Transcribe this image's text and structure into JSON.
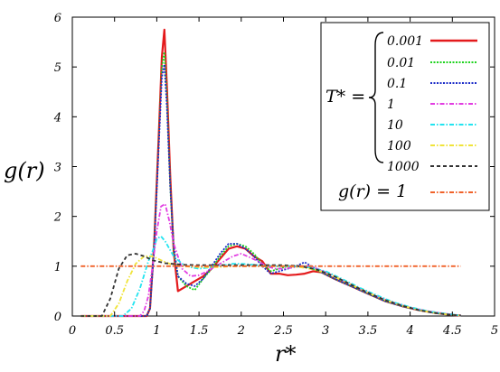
{
  "chart_data": {
    "type": "line",
    "xlabel": "r*",
    "ylabel": "g(r)",
    "xlim": [
      0,
      5
    ],
    "ylim": [
      0,
      6
    ],
    "x_ticks": [
      "0",
      "0.5",
      "1",
      "1.5",
      "2",
      "2.5",
      "3",
      "3.5",
      "4",
      "4.5",
      "5"
    ],
    "y_ticks": [
      "0",
      "1",
      "2",
      "3",
      "4",
      "5",
      "6"
    ],
    "grid": false,
    "legend_position": "top-right",
    "legend_group_label": "T* =",
    "series": [
      {
        "name": "0.001",
        "color": "#e41a1c",
        "dash": "solid",
        "x": [
          0.1,
          0.88,
          0.92,
          0.97,
          1.02,
          1.06,
          1.09,
          1.12,
          1.16,
          1.2,
          1.25,
          1.35,
          1.45,
          1.55,
          1.65,
          1.75,
          1.85,
          1.95,
          2.05,
          2.15,
          2.25,
          2.35,
          2.45,
          2.55,
          2.65,
          2.75,
          2.85,
          2.95,
          3.1,
          3.3,
          3.5,
          3.7,
          3.9,
          4.1,
          4.3,
          4.5,
          4.6
        ],
        "y": [
          0,
          0,
          0.15,
          1.5,
          3.5,
          5.2,
          5.75,
          4.6,
          2.8,
          1.3,
          0.5,
          0.6,
          0.7,
          0.8,
          0.95,
          1.15,
          1.35,
          1.4,
          1.35,
          1.2,
          1.1,
          0.85,
          0.85,
          0.82,
          0.83,
          0.85,
          0.9,
          0.88,
          0.75,
          0.6,
          0.45,
          0.3,
          0.2,
          0.12,
          0.06,
          0.02,
          0.01
        ]
      },
      {
        "name": "0.01",
        "color": "#1fd31f",
        "dash": "dots",
        "x": [
          0.1,
          0.88,
          0.92,
          0.97,
          1.02,
          1.06,
          1.09,
          1.12,
          1.16,
          1.2,
          1.25,
          1.35,
          1.45,
          1.55,
          1.65,
          1.75,
          1.85,
          1.95,
          2.05,
          2.15,
          2.25,
          2.35,
          2.45,
          2.55,
          2.65,
          2.75,
          2.85,
          2.95,
          3.1,
          3.3,
          3.5,
          3.7,
          3.9,
          4.1,
          4.3,
          4.5,
          4.6
        ],
        "y": [
          0,
          0,
          0.15,
          1.5,
          3.4,
          5.0,
          5.3,
          4.4,
          2.6,
          1.3,
          0.8,
          0.6,
          0.52,
          0.75,
          0.95,
          1.2,
          1.4,
          1.45,
          1.4,
          1.25,
          1.05,
          0.9,
          0.95,
          1.0,
          1.0,
          1.0,
          0.95,
          0.88,
          0.75,
          0.6,
          0.45,
          0.3,
          0.2,
          0.12,
          0.06,
          0.02,
          0.01
        ]
      },
      {
        "name": "0.1",
        "color": "#1c2cc8",
        "dash": "dots",
        "x": [
          0.1,
          0.88,
          0.92,
          0.97,
          1.02,
          1.06,
          1.09,
          1.12,
          1.16,
          1.2,
          1.25,
          1.35,
          1.45,
          1.55,
          1.65,
          1.75,
          1.85,
          1.95,
          2.05,
          2.15,
          2.25,
          2.35,
          2.45,
          2.55,
          2.65,
          2.75,
          2.85,
          2.95,
          3.1,
          3.3,
          3.5,
          3.7,
          3.9,
          4.1,
          4.3,
          4.5,
          4.6
        ],
        "y": [
          0,
          0,
          0.15,
          1.4,
          3.3,
          4.8,
          5.05,
          4.2,
          2.6,
          1.4,
          0.8,
          0.65,
          0.6,
          0.75,
          1.0,
          1.25,
          1.45,
          1.45,
          1.35,
          1.2,
          1.0,
          0.85,
          0.9,
          0.95,
          1.0,
          1.08,
          0.98,
          0.88,
          0.75,
          0.6,
          0.45,
          0.3,
          0.2,
          0.12,
          0.06,
          0.02,
          0.01
        ]
      },
      {
        "name": "1",
        "color": "#e23ee2",
        "dash": "dashdot",
        "x": [
          0.1,
          0.8,
          0.85,
          0.9,
          0.95,
          1.0,
          1.05,
          1.1,
          1.15,
          1.2,
          1.3,
          1.4,
          1.5,
          1.6,
          1.7,
          1.8,
          1.9,
          2.0,
          2.1,
          2.2,
          2.3,
          2.4,
          2.5,
          2.6,
          2.7,
          2.8,
          2.9,
          3.0,
          3.2,
          3.4,
          3.6,
          3.8,
          4.0,
          4.2,
          4.4,
          4.6
        ],
        "y": [
          0,
          0,
          0.1,
          0.4,
          1.0,
          1.7,
          2.2,
          2.25,
          1.9,
          1.45,
          0.95,
          0.8,
          0.82,
          0.9,
          1.0,
          1.1,
          1.2,
          1.25,
          1.18,
          1.1,
          1.0,
          0.95,
          0.95,
          0.97,
          1.0,
          1.0,
          0.95,
          0.88,
          0.72,
          0.55,
          0.4,
          0.27,
          0.17,
          0.1,
          0.05,
          0.01
        ]
      },
      {
        "name": "10",
        "color": "#22e4f0",
        "dash": "dashdot",
        "x": [
          0.1,
          0.6,
          0.7,
          0.8,
          0.9,
          0.95,
          1.0,
          1.05,
          1.1,
          1.15,
          1.2,
          1.3,
          1.4,
          1.5,
          1.6,
          1.7,
          1.8,
          1.9,
          2.0,
          2.2,
          2.4,
          2.6,
          2.8,
          3.0,
          3.2,
          3.4,
          3.6,
          3.8,
          4.0,
          4.2,
          4.4,
          4.6
        ],
        "y": [
          0,
          0,
          0.15,
          0.55,
          1.1,
          1.3,
          1.55,
          1.6,
          1.5,
          1.35,
          1.2,
          1.05,
          0.98,
          0.95,
          0.97,
          1.0,
          1.02,
          1.05,
          1.05,
          1.02,
          1.0,
          1.0,
          0.98,
          0.9,
          0.74,
          0.57,
          0.42,
          0.28,
          0.18,
          0.1,
          0.05,
          0.01
        ]
      },
      {
        "name": "100",
        "color": "#f0e43a",
        "dash": "dashdot",
        "x": [
          0.1,
          0.45,
          0.55,
          0.65,
          0.75,
          0.85,
          0.95,
          1.05,
          1.15,
          1.3,
          1.5,
          1.7,
          1.9,
          2.1,
          2.3,
          2.5,
          2.7,
          2.9,
          3.1,
          3.3,
          3.5,
          3.7,
          3.9,
          4.1,
          4.3,
          4.5,
          4.6
        ],
        "y": [
          0,
          0,
          0.25,
          0.7,
          1.05,
          1.2,
          1.2,
          1.12,
          1.05,
          1.0,
          0.98,
          0.98,
          1.0,
          1.0,
          1.0,
          1.0,
          0.98,
          0.92,
          0.8,
          0.63,
          0.47,
          0.32,
          0.21,
          0.12,
          0.06,
          0.02,
          0.01
        ]
      },
      {
        "name": "1000",
        "color": "#333333",
        "dash": "dashed",
        "x": [
          0.1,
          0.35,
          0.45,
          0.55,
          0.65,
          0.75,
          0.85,
          0.95,
          1.1,
          1.3,
          1.5,
          1.7,
          1.9,
          2.1,
          2.3,
          2.5,
          2.7,
          2.9,
          3.1,
          3.3,
          3.5,
          3.7,
          3.9,
          4.1,
          4.3,
          4.5,
          4.6
        ],
        "y": [
          0,
          0,
          0.35,
          0.95,
          1.22,
          1.25,
          1.2,
          1.12,
          1.06,
          1.03,
          1.02,
          1.02,
          1.02,
          1.02,
          1.02,
          1.02,
          1.0,
          0.93,
          0.8,
          0.63,
          0.47,
          0.32,
          0.21,
          0.12,
          0.06,
          0.02,
          0.01
        ]
      },
      {
        "name": "g(r) = 1",
        "color": "#f0622a",
        "dash": "dashdot",
        "x": [
          0.1,
          4.6
        ],
        "y": [
          1,
          1
        ]
      }
    ]
  }
}
